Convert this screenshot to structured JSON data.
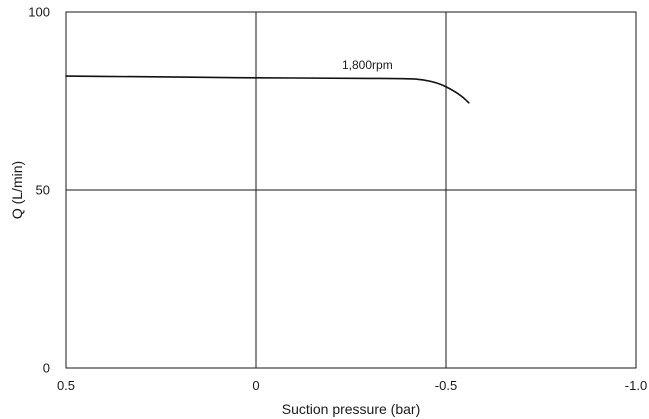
{
  "chart_data": {
    "type": "line",
    "title": "",
    "xlabel": "Suction pressure (bar)",
    "ylabel": "Q (L/min)",
    "xlim": [
      0.5,
      -1.0
    ],
    "ylim": [
      0,
      100
    ],
    "x_reversed": true,
    "grid": true,
    "x_ticks": [
      0.5,
      0,
      -0.5,
      -1.0
    ],
    "x_tick_labels": [
      "0.5",
      "0",
      "-0.5",
      "-1.0"
    ],
    "y_ticks": [
      0,
      50,
      100
    ],
    "y_tick_labels": [
      "0",
      "50",
      "100"
    ],
    "series": [
      {
        "name": "1,800rpm",
        "color": "#111111",
        "x": [
          0.5,
          0.3,
          0.1,
          0.0,
          -0.2,
          -0.4,
          -0.44,
          -0.48,
          -0.51,
          -0.54,
          -0.56
        ],
        "y": [
          82.0,
          81.8,
          81.6,
          81.5,
          81.4,
          81.3,
          81.0,
          80.0,
          78.5,
          76.5,
          74.5
        ]
      }
    ]
  }
}
